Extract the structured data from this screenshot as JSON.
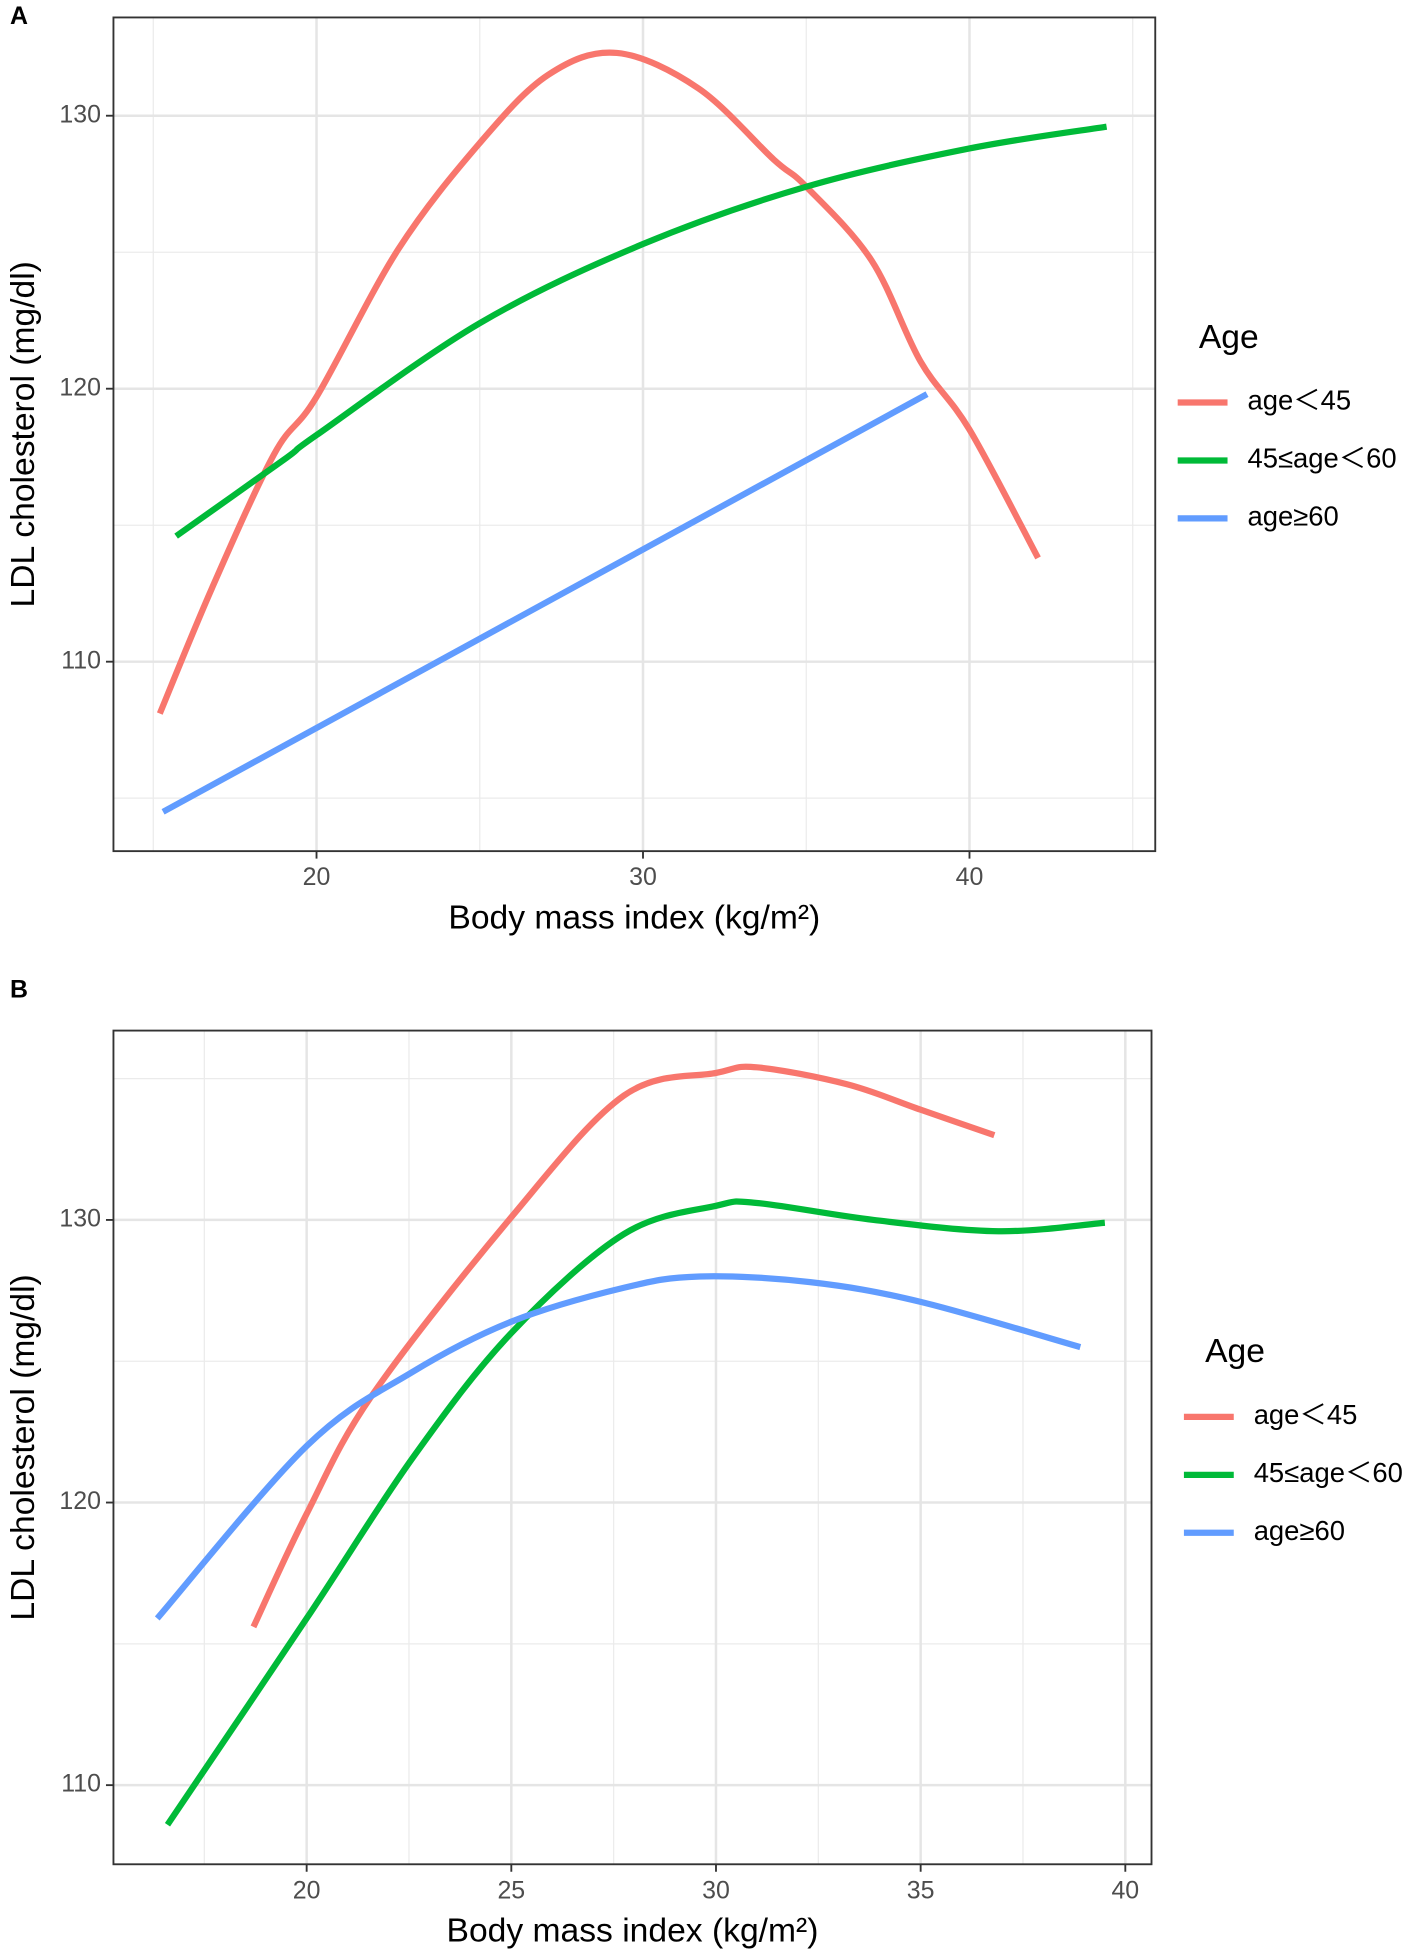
{
  "chart_data": [
    {
      "type": "line",
      "label": "A",
      "x_label": "Body mass index (kg/m²)",
      "y_label": "LDL cholesterol (mg/dl)",
      "xlim": [
        13.78,
        45.69
      ],
      "ylim": [
        103.06,
        133.6
      ],
      "xticks": [
        20,
        30,
        40
      ],
      "yticks": [
        110,
        120,
        130
      ],
      "x_minor_ticks": [
        15,
        25,
        35,
        45
      ],
      "y_minor_ticks": [
        105,
        115,
        125
      ],
      "grid": true,
      "legend_title": "Age",
      "legend": "right",
      "series": [
        {
          "name": "age＜45",
          "color": "#F8766D",
          "x": [
            15.2,
            16.8,
            18.7,
            20,
            22.5,
            25,
            27.1,
            29.2,
            31.7,
            34,
            35,
            37,
            38.5,
            40,
            42.1
          ],
          "values": [
            108.1,
            112.7,
            117.6,
            119.7,
            125.1,
            129,
            131.5,
            132.3,
            131,
            128.4,
            127.4,
            124.7,
            121,
            118.5,
            113.8
          ]
        },
        {
          "name": "45≤age＜60",
          "color": "#00BA38",
          "x": [
            15.7,
            19,
            20,
            25,
            30,
            35,
            40,
            44.2
          ],
          "values": [
            114.6,
            117.4,
            118.3,
            122.4,
            125.3,
            127.4,
            128.8,
            129.6
          ]
        },
        {
          "name": "age≥60",
          "color": "#619CFF",
          "x": [
            15.3,
            38.7
          ],
          "values": [
            104.5,
            119.8
          ]
        }
      ]
    },
    {
      "type": "line",
      "label": "B",
      "x_label": "Body mass index (kg/m²)",
      "y_label": "LDL cholesterol (mg/dl)",
      "xlim": [
        15.28,
        40.64
      ],
      "ylim": [
        107.2,
        136.7
      ],
      "xticks": [
        20,
        25,
        30,
        35,
        40
      ],
      "yticks": [
        110,
        120,
        130
      ],
      "x_minor_ticks": [
        17.5,
        22.5,
        27.5,
        32.5,
        37.5
      ],
      "y_minor_ticks": [
        115,
        125,
        135
      ],
      "grid": true,
      "legend_title": "Age",
      "legend": "right",
      "series": [
        {
          "name": "age＜45",
          "color": "#F8766D",
          "x": [
            18.7,
            20,
            21.6,
            25,
            27.75,
            30,
            31,
            33.2,
            35,
            36.8
          ],
          "values": [
            115.6,
            119.6,
            123.8,
            130.1,
            134.4,
            135.2,
            135.4,
            134.8,
            133.9,
            133
          ]
        },
        {
          "name": "45≤age＜60",
          "color": "#00BA38",
          "x": [
            16.6,
            20,
            22.6,
            25,
            27.75,
            30,
            31,
            33.85,
            36.9,
            39.5
          ],
          "values": [
            108.6,
            115.9,
            121.6,
            126,
            129.5,
            130.5,
            130.6,
            130,
            129.6,
            129.9
          ]
        },
        {
          "name": "age≥60",
          "color": "#619CFF",
          "x": [
            16.35,
            20,
            22.56,
            25,
            27.75,
            29.6,
            32.3,
            35,
            38.9
          ],
          "values": [
            115.9,
            122,
            124.6,
            126.4,
            127.6,
            128,
            127.8,
            127.1,
            125.5
          ]
        }
      ]
    }
  ]
}
